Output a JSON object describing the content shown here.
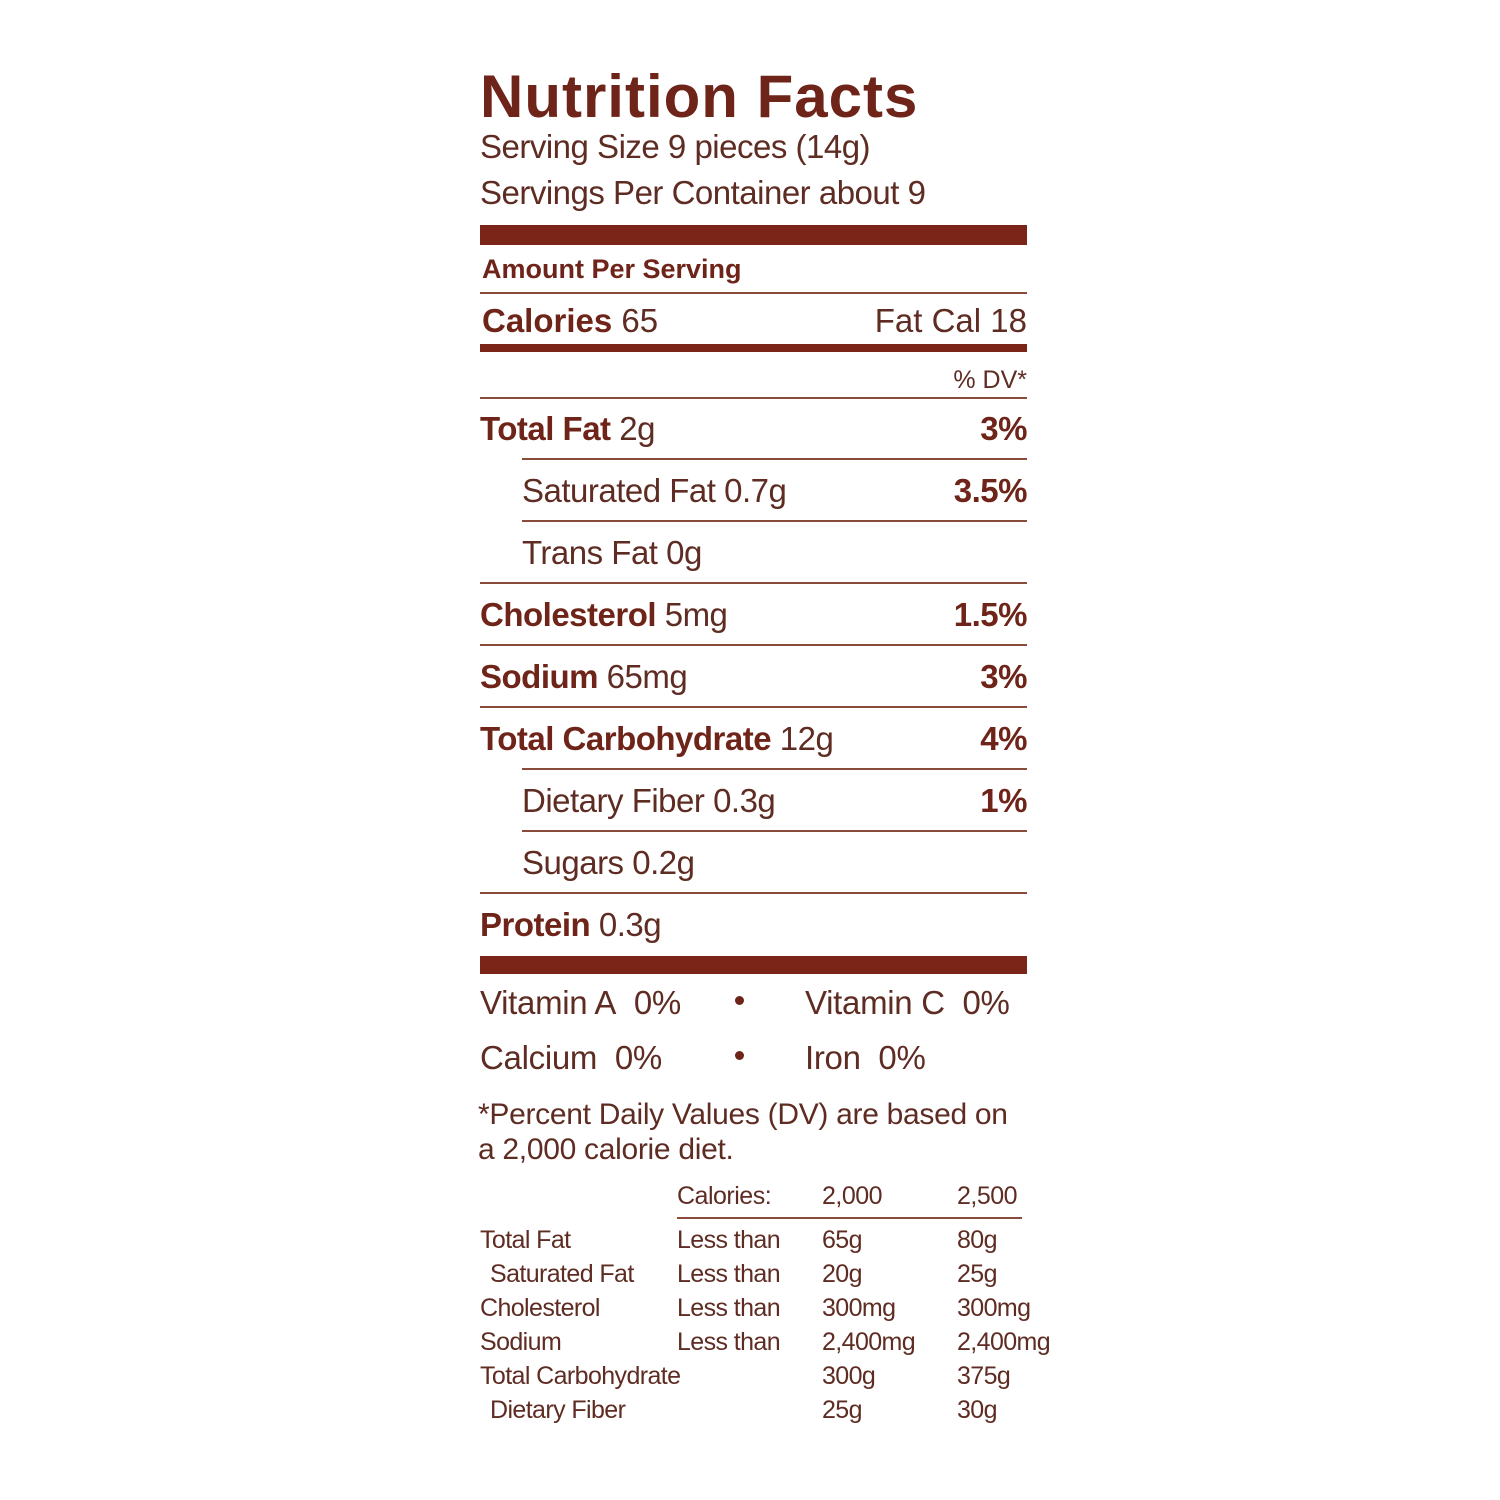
{
  "title": "Nutrition Facts",
  "serving_size": "Serving Size 9 pieces (14g)",
  "servings_per_container": "Servings Per Container about 9",
  "amount_header": "Amount Per Serving",
  "calories": {
    "label": "Calories",
    "value": "65",
    "fat_cal": "Fat Cal 18"
  },
  "dv_header": "% DV*",
  "nutrients": [
    {
      "label": "Total Fat",
      "amount": "2g",
      "dv": "3%",
      "sub": [
        {
          "label": "Saturated Fat",
          "amount": "0.7g",
          "dv": "3.5%"
        },
        {
          "label": "Trans Fat",
          "amount": "0g"
        }
      ]
    },
    {
      "label": "Cholesterol",
      "amount": "5mg",
      "dv": "1.5%"
    },
    {
      "label": "Sodium",
      "amount": "65mg",
      "dv": "3%"
    },
    {
      "label": "Total Carbohydrate",
      "amount": "12g",
      "dv": "4%",
      "sub": [
        {
          "label": "Dietary Fiber",
          "amount": "0.3g",
          "dv": "1%"
        },
        {
          "label": "Sugars",
          "amount": "0.2g"
        }
      ]
    },
    {
      "label": "Protein",
      "amount": "0.3g"
    }
  ],
  "vitamins": [
    [
      {
        "name": "Vitamin A",
        "dv": "0%"
      },
      {
        "name": "Vitamin C",
        "dv": "0%"
      }
    ],
    [
      {
        "name": "Calcium",
        "dv": "0%"
      },
      {
        "name": "Iron",
        "dv": "0%"
      }
    ]
  ],
  "footnote": "*Percent Daily Values (DV) are based on a 2,000 calorie diet.",
  "dv_table": {
    "header": [
      "Calories:",
      "2,000",
      "2,500"
    ],
    "rows": [
      {
        "name": "Total Fat",
        "limit": "Less than",
        "values": [
          "65g",
          "80g"
        ],
        "sub": [
          {
            "name": "Saturated Fat",
            "limit": "Less than",
            "values": [
              "20g",
              "25g"
            ]
          }
        ]
      },
      {
        "name": "Cholesterol",
        "limit": "Less than",
        "values": [
          "300mg",
          "300mg"
        ]
      },
      {
        "name": "Sodium",
        "limit": "Less than",
        "values": [
          "2,400mg",
          "2,400mg"
        ]
      },
      {
        "name": "Total Carbohydrate",
        "values": [
          "300g",
          "375g"
        ],
        "sub": [
          {
            "name": "Dietary Fiber",
            "values": [
              "25g",
              "30g"
            ]
          }
        ]
      }
    ]
  }
}
